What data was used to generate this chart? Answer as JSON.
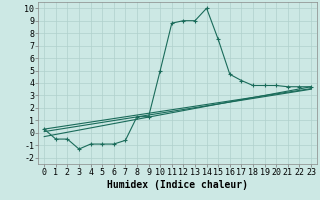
{
  "bg_color": "#cce8e4",
  "grid_color": "#b0d0cc",
  "line_color": "#1a6b5a",
  "xlabel": "Humidex (Indice chaleur)",
  "xlabel_fontsize": 7,
  "tick_fontsize": 6,
  "ylim": [
    -2.5,
    10.5
  ],
  "xlim": [
    -0.5,
    23.5
  ],
  "yticks": [
    -2,
    -1,
    0,
    1,
    2,
    3,
    4,
    5,
    6,
    7,
    8,
    9,
    10
  ],
  "xticks": [
    0,
    1,
    2,
    3,
    4,
    5,
    6,
    7,
    8,
    9,
    10,
    11,
    12,
    13,
    14,
    15,
    16,
    17,
    18,
    19,
    20,
    21,
    22,
    23
  ],
  "line1_x": [
    0,
    1,
    2,
    3,
    4,
    5,
    6,
    7,
    8,
    9,
    10,
    11,
    12,
    13,
    14,
    15,
    16,
    17,
    18,
    19,
    20,
    21,
    22,
    23
  ],
  "line1_y": [
    0.3,
    -0.5,
    -0.5,
    -1.3,
    -0.9,
    -0.9,
    -0.9,
    -0.6,
    1.3,
    1.3,
    5.0,
    8.8,
    9.0,
    9.0,
    10.0,
    7.5,
    4.7,
    4.2,
    3.8,
    3.8,
    3.8,
    3.7,
    3.7,
    3.7
  ],
  "line2_x": [
    0,
    23
  ],
  "line2_y": [
    -0.3,
    3.7
  ],
  "line3_x": [
    0,
    23
  ],
  "line3_y": [
    0.1,
    3.5
  ],
  "line4_x": [
    0,
    23
  ],
  "line4_y": [
    0.3,
    3.55
  ]
}
